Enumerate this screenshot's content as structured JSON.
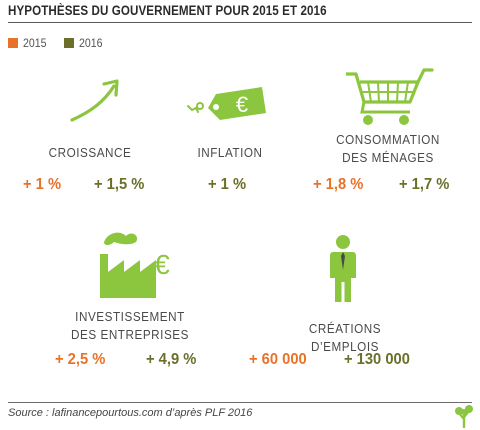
{
  "title": "HYPOTHÈSES DU GOUVERNEMENT POUR 2015 ET 2016",
  "legend": [
    {
      "label": "2015",
      "color": "#e8722a"
    },
    {
      "label": "2016",
      "color": "#6b6f2a"
    }
  ],
  "accent_green": "#8cc63f",
  "chart_data": {
    "type": "table",
    "title": "HYPOTHÈSES DU GOUVERNEMENT POUR 2015 ET 2016",
    "series_names": [
      "2015",
      "2016"
    ],
    "indicators": [
      {
        "label": "CROISSANCE",
        "icon": "arrow-up-icon",
        "v2015": "+ 1 %",
        "v2016": "+ 1,5 %"
      },
      {
        "label": "INFLATION",
        "icon": "euro-price-tag-icon",
        "v2015": "",
        "v2016": "+ 1 %"
      },
      {
        "label": "CONSOMMATION\nDES MÉNAGES",
        "icon": "shopping-cart-icon",
        "v2015": "+ 1,8 %",
        "v2016": "+ 1,7 %"
      },
      {
        "label": "INVESTISSEMENT\nDES ENTREPRISES",
        "icon": "factory-euro-icon",
        "v2015": "+ 2,5 %",
        "v2016": "+ 4,9 %"
      },
      {
        "label": "CRÉATIONS D’EMPLOIS",
        "icon": "worker-icon",
        "v2015": "+ 60 000",
        "v2016": "+ 130 000"
      }
    ]
  },
  "source": "Source : lafinancepourtous.com d’après PLF 2016"
}
